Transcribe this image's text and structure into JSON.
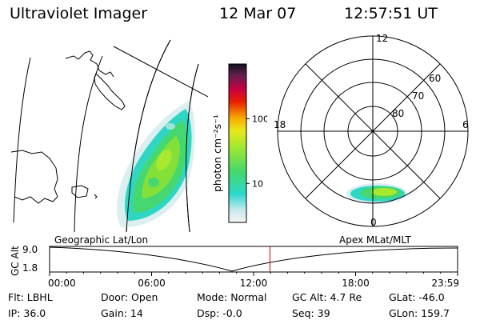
{
  "header": {
    "instrument": "Ultraviolet Imager",
    "date": "12 Mar 07",
    "time": "12:57:51 UT"
  },
  "colorbar": {
    "unit_label": "photon cm⁻²s⁻¹",
    "tick_labels": [
      "100",
      "10"
    ],
    "tick_values": [
      100,
      10
    ],
    "range": [
      2.5,
      700
    ],
    "scale": "log"
  },
  "polar": {
    "mlt_labels": {
      "top": "12",
      "left": "18",
      "right": "6",
      "bottom": "0"
    },
    "mlat_labels": [
      "60",
      "70",
      "80"
    ]
  },
  "map_labels": {
    "left": "Geographic Lat/Lon",
    "right": "Apex MLat/MLT"
  },
  "timeline": {
    "ylabel": "GC Alt",
    "yticks": [
      "9.0",
      "1.8"
    ],
    "xticks": [
      "00:00",
      "06:00",
      "12:00",
      "18:00",
      "23:59"
    ],
    "current_time_hours": 12.96
  },
  "info": {
    "flt": "Flt: LBHL",
    "ip": "IP: 36.0",
    "door": "Door: Open",
    "gain": "Gain: 14",
    "mode": "Mode: Normal",
    "dsp": "Dsp:   -0.0",
    "gcalt": "GC Alt: 4.7 Re",
    "seq": "Seq: 39",
    "glat": "GLat: -46.0",
    "glon": "GLon: 159.7"
  },
  "colors": {
    "colormap": [
      "#f4f4f4",
      "#c6e8ec",
      "#2ad8cc",
      "#44d86a",
      "#a4e830",
      "#e8e818",
      "#f8a800",
      "#e82000",
      "#c80040",
      "#60204c",
      "#101020"
    ],
    "marker": "#cc0000"
  }
}
